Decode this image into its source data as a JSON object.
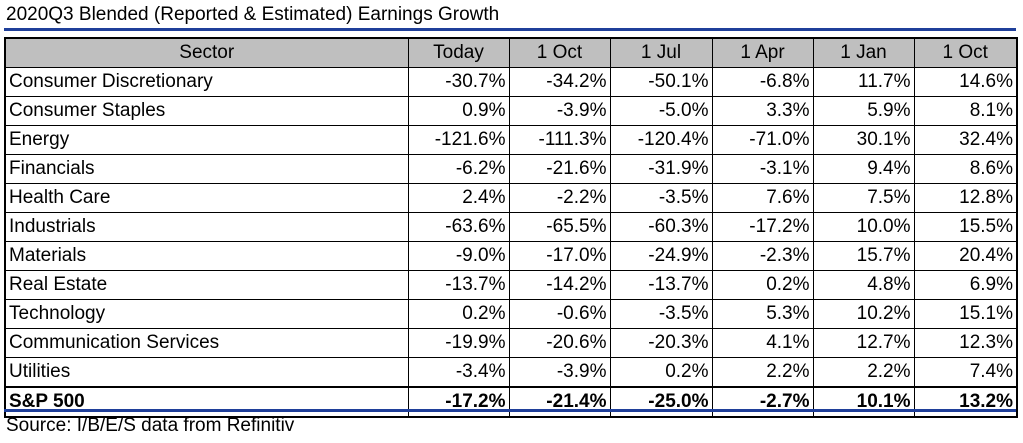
{
  "title": "2020Q3 Blended (Reported & Estimated) Earnings Growth",
  "columns": [
    "Sector",
    "Today",
    "1 Oct",
    "1 Jul",
    "1 Apr",
    "1 Jan",
    "1 Oct"
  ],
  "rows": [
    {
      "sector": "Consumer Discretionary",
      "values": [
        "-30.7%",
        "-34.2%",
        "-50.1%",
        "-6.8%",
        "11.7%",
        "14.6%"
      ]
    },
    {
      "sector": "Consumer Staples",
      "values": [
        "0.9%",
        "-3.9%",
        "-5.0%",
        "3.3%",
        "5.9%",
        "8.1%"
      ]
    },
    {
      "sector": "Energy",
      "values": [
        "-121.6%",
        "-111.3%",
        "-120.4%",
        "-71.0%",
        "30.1%",
        "32.4%"
      ]
    },
    {
      "sector": "Financials",
      "values": [
        "-6.2%",
        "-21.6%",
        "-31.9%",
        "-3.1%",
        "9.4%",
        "8.6%"
      ]
    },
    {
      "sector": "Health Care",
      "values": [
        "2.4%",
        "-2.2%",
        "-3.5%",
        "7.6%",
        "7.5%",
        "12.8%"
      ]
    },
    {
      "sector": "Industrials",
      "values": [
        "-63.6%",
        "-65.5%",
        "-60.3%",
        "-17.2%",
        "10.0%",
        "15.5%"
      ]
    },
    {
      "sector": "Materials",
      "values": [
        "-9.0%",
        "-17.0%",
        "-24.9%",
        "-2.3%",
        "15.7%",
        "20.4%"
      ]
    },
    {
      "sector": "Real Estate",
      "values": [
        "-13.7%",
        "-14.2%",
        "-13.7%",
        "0.2%",
        "4.8%",
        "6.9%"
      ]
    },
    {
      "sector": "Technology",
      "values": [
        "0.2%",
        "-0.6%",
        "-3.5%",
        "5.3%",
        "10.2%",
        "15.1%"
      ]
    },
    {
      "sector": "Communication Services",
      "values": [
        "-19.9%",
        "-20.6%",
        "-20.3%",
        "4.1%",
        "12.7%",
        "12.3%"
      ]
    },
    {
      "sector": "Utilities",
      "values": [
        "-3.4%",
        "-3.9%",
        "0.2%",
        "2.2%",
        "2.2%",
        "7.4%"
      ]
    }
  ],
  "total": {
    "sector": "S&P 500",
    "values": [
      "-17.2%",
      "-21.4%",
      "-25.0%",
      "-2.7%",
      "10.1%",
      "13.2%"
    ]
  },
  "source": "Source: I/B/E/S data from Refinitiv",
  "colors": {
    "rule": "#1f3f9a",
    "header_bg": "#bfbfbf"
  }
}
